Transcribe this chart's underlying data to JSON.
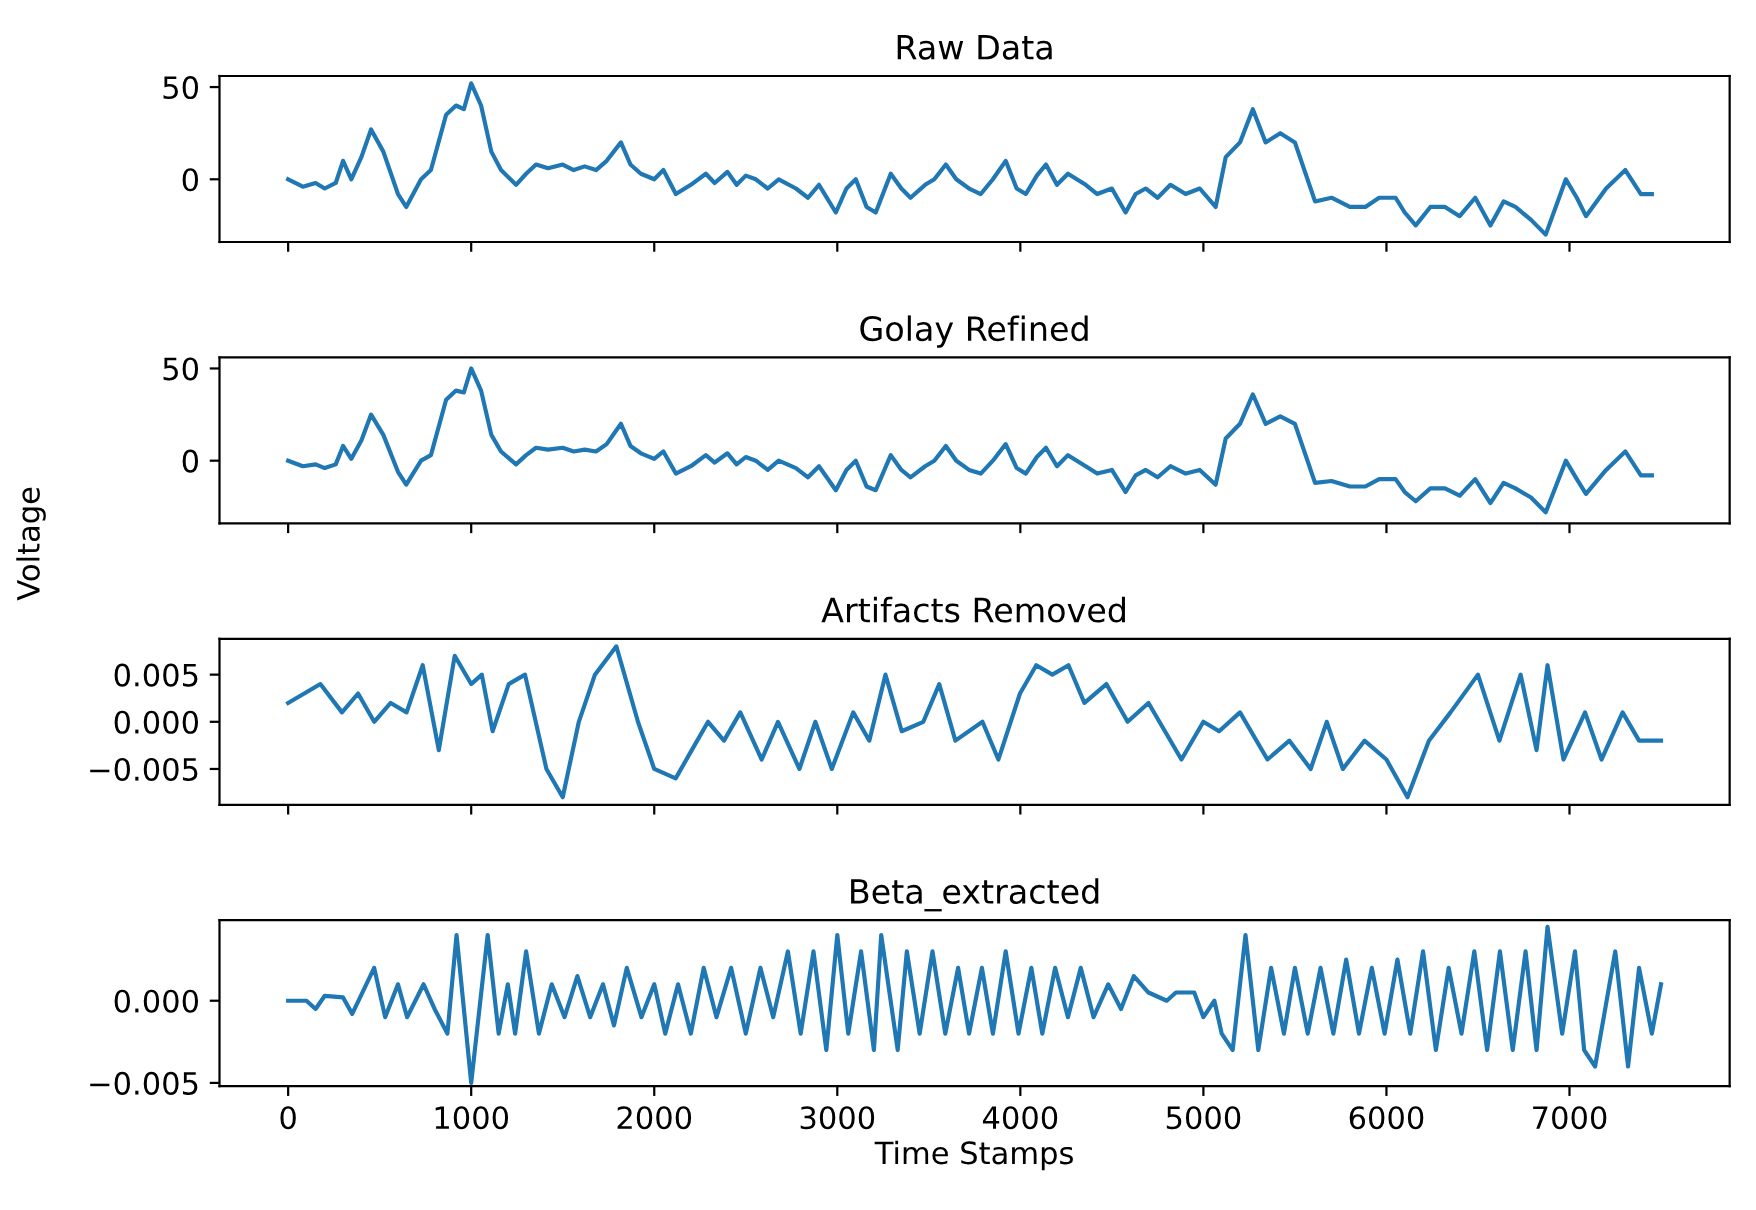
{
  "chart_data": [
    {
      "type": "line",
      "title": "Raw Data",
      "tick_labels": "y",
      "xlim": [
        -375,
        7875
      ],
      "ylim": [
        -34,
        56
      ],
      "xticks": [
        0,
        1000,
        2000,
        3000,
        4000,
        5000,
        6000,
        7000
      ],
      "yticks": [
        0,
        50
      ],
      "grid": false,
      "legend": false,
      "series": [
        {
          "color": "#1f77b4",
          "x": [
            0,
            80,
            150,
            200,
            260,
            300,
            345,
            400,
            453,
            520,
            600,
            645,
            726,
            780,
            863,
            917,
            960,
            1000,
            1054,
            1110,
            1163,
            1245,
            1300,
            1354,
            1420,
            1500,
            1560,
            1620,
            1682,
            1740,
            1818,
            1870,
            1927,
            2000,
            2050,
            2118,
            2200,
            2282,
            2330,
            2400,
            2450,
            2500,
            2555,
            2620,
            2680,
            2774,
            2840,
            2900,
            2992,
            3050,
            3101,
            3160,
            3210,
            3292,
            3350,
            3400,
            3480,
            3530,
            3593,
            3650,
            3720,
            3784,
            3850,
            3920,
            3980,
            4030,
            4090,
            4140,
            4200,
            4260,
            4357,
            4420,
            4500,
            4575,
            4630,
            4685,
            4750,
            4820,
            4903,
            4980,
            5067,
            5122,
            5200,
            5270,
            5340,
            5420,
            5500,
            5610,
            5700,
            5800,
            5885,
            5960,
            6050,
            6100,
            6160,
            6240,
            6320,
            6400,
            6485,
            6568,
            6640,
            6705,
            6790,
            6870,
            6980,
            7040,
            7090,
            7200,
            7305,
            7390,
            7450
          ],
          "values": [
            0,
            -4,
            -2,
            -5,
            -2,
            10,
            0,
            12,
            27,
            15,
            -8,
            -15,
            0,
            5,
            35,
            40,
            38,
            52,
            40,
            15,
            5,
            -3,
            3,
            8,
            6,
            8,
            5,
            7,
            5,
            10,
            20,
            8,
            3,
            0,
            5,
            -8,
            -3,
            3,
            -2,
            4,
            -3,
            2,
            0,
            -5,
            0,
            -5,
            -10,
            -3,
            -18,
            -5,
            0,
            -15,
            -18,
            3,
            -5,
            -10,
            -3,
            0,
            8,
            0,
            -5,
            -8,
            0,
            10,
            -5,
            -8,
            2,
            8,
            -3,
            3,
            -3,
            -8,
            -5,
            -18,
            -8,
            -5,
            -10,
            -3,
            -8,
            -5,
            -15,
            12,
            20,
            38,
            20,
            25,
            20,
            -12,
            -10,
            -15,
            -15,
            -10,
            -10,
            -18,
            -25,
            -15,
            -15,
            -20,
            -10,
            -25,
            -12,
            -15,
            -22,
            -30,
            0,
            -10,
            -20,
            -5,
            5,
            -8,
            -8
          ]
        }
      ]
    },
    {
      "type": "line",
      "title": "Golay Refined",
      "ylabel": "Voltage",
      "tick_labels": "y",
      "xlim": [
        -375,
        7875
      ],
      "ylim": [
        -34,
        56
      ],
      "xticks": [
        0,
        1000,
        2000,
        3000,
        4000,
        5000,
        6000,
        7000
      ],
      "yticks": [
        0,
        50
      ],
      "grid": false,
      "legend": false,
      "series": [
        {
          "color": "#1f77b4",
          "x": [
            0,
            80,
            150,
            200,
            260,
            300,
            345,
            400,
            453,
            520,
            600,
            645,
            726,
            780,
            863,
            917,
            960,
            1000,
            1054,
            1110,
            1163,
            1245,
            1300,
            1354,
            1420,
            1500,
            1560,
            1620,
            1682,
            1740,
            1818,
            1870,
            1927,
            2000,
            2050,
            2118,
            2200,
            2282,
            2330,
            2400,
            2450,
            2500,
            2555,
            2620,
            2680,
            2774,
            2840,
            2900,
            2992,
            3050,
            3101,
            3160,
            3210,
            3292,
            3350,
            3400,
            3480,
            3530,
            3593,
            3650,
            3720,
            3784,
            3850,
            3920,
            3980,
            4030,
            4090,
            4140,
            4200,
            4260,
            4357,
            4420,
            4500,
            4575,
            4630,
            4685,
            4750,
            4820,
            4903,
            4980,
            5067,
            5122,
            5200,
            5270,
            5340,
            5420,
            5500,
            5610,
            5700,
            5800,
            5885,
            5960,
            6050,
            6100,
            6160,
            6240,
            6320,
            6400,
            6485,
            6568,
            6640,
            6705,
            6790,
            6870,
            6980,
            7040,
            7090,
            7200,
            7305,
            7390,
            7450
          ],
          "values": [
            0,
            -3,
            -2,
            -4,
            -2,
            8,
            1,
            11,
            25,
            14,
            -6,
            -13,
            0,
            3,
            33,
            38,
            37,
            50,
            38,
            14,
            5,
            -2,
            3,
            7,
            6,
            7,
            5,
            6,
            5,
            9,
            20,
            8,
            4,
            1,
            5,
            -7,
            -3,
            3,
            -1,
            4,
            -2,
            2,
            0,
            -5,
            0,
            -4,
            -9,
            -3,
            -16,
            -5,
            0,
            -14,
            -16,
            3,
            -5,
            -9,
            -3,
            0,
            8,
            0,
            -5,
            -7,
            0,
            9,
            -4,
            -7,
            2,
            7,
            -3,
            3,
            -3,
            -7,
            -5,
            -17,
            -8,
            -5,
            -9,
            -3,
            -7,
            -5,
            -13,
            12,
            20,
            36,
            20,
            24,
            20,
            -12,
            -11,
            -14,
            -14,
            -10,
            -10,
            -17,
            -22,
            -15,
            -15,
            -19,
            -10,
            -23,
            -12,
            -15,
            -20,
            -28,
            0,
            -10,
            -18,
            -5,
            5,
            -8,
            -8
          ]
        }
      ]
    },
    {
      "type": "line",
      "title": "Artifacts Removed",
      "tick_labels": "y",
      "xlim": [
        -375,
        7875
      ],
      "ylim": [
        -0.0088,
        0.0088
      ],
      "xticks": [
        0,
        1000,
        2000,
        3000,
        4000,
        5000,
        6000,
        7000
      ],
      "yticks": [
        {
          "value": -0.005,
          "label": "−0.005"
        },
        {
          "value": 0.0,
          "label": "0.000"
        },
        {
          "value": 0.005,
          "label": "0.005"
        }
      ],
      "grid": false,
      "legend": false,
      "series": [
        {
          "color": "#1f77b4",
          "x": [
            0,
            88,
            176,
            294,
            382,
            470,
            560,
            647,
            735,
            823,
            910,
            1000,
            1058,
            1117,
            1205,
            1294,
            1411,
            1500,
            1588,
            1676,
            1793,
            1911,
            2000,
            2117,
            2205,
            2294,
            2381,
            2470,
            2587,
            2676,
            2793,
            2880,
            2970,
            3087,
            3175,
            3263,
            3352,
            3470,
            3557,
            3645,
            3793,
            3880,
            3998,
            4087,
            4175,
            4263,
            4350,
            4470,
            4586,
            4700,
            4880,
            5000,
            5086,
            5200,
            5350,
            5470,
            5586,
            5674,
            5762,
            5880,
            6000,
            6115,
            6232,
            6350,
            6500,
            6617,
            6733,
            6820,
            6880,
            6967,
            7085,
            7175,
            7290,
            7380,
            7500
          ],
          "values": [
            0.002,
            0.003,
            0.004,
            0.001,
            0.003,
            0.0,
            0.002,
            0.001,
            0.006,
            -0.003,
            0.007,
            0.004,
            0.005,
            -0.001,
            0.004,
            0.005,
            -0.005,
            -0.008,
            0.0,
            0.005,
            0.008,
            0.0,
            -0.005,
            -0.006,
            -0.003,
            0.0,
            -0.002,
            0.001,
            -0.004,
            0.0,
            -0.005,
            0.0,
            -0.005,
            0.001,
            -0.002,
            0.005,
            -0.001,
            0.0,
            0.004,
            -0.002,
            0.0,
            -0.004,
            0.003,
            0.006,
            0.005,
            0.006,
            0.002,
            0.004,
            0.0,
            0.002,
            -0.004,
            0.0,
            -0.001,
            0.001,
            -0.004,
            -0.002,
            -0.005,
            0.0,
            -0.005,
            -0.002,
            -0.004,
            -0.008,
            -0.002,
            0.001,
            0.005,
            -0.002,
            0.005,
            -0.003,
            0.006,
            -0.004,
            0.001,
            -0.004,
            0.001,
            -0.002,
            -0.002
          ]
        }
      ]
    },
    {
      "type": "line",
      "title": "Beta_extracted",
      "xlabel": "Time Stamps",
      "xlim": [
        -375,
        7875
      ],
      "ylim": [
        -0.0052,
        0.0049
      ],
      "xticks": [
        0,
        1000,
        2000,
        3000,
        4000,
        5000,
        6000,
        7000
      ],
      "yticks": [
        {
          "value": -0.005,
          "label": "−0.005"
        },
        {
          "value": 0.0,
          "label": "0.000"
        }
      ],
      "grid": false,
      "legend": false,
      "series": [
        {
          "color": "#1f77b4",
          "x": [
            0,
            100,
            150,
            200,
            300,
            350,
            470,
            530,
            600,
            650,
            740,
            800,
            870,
            920,
            1000,
            1090,
            1150,
            1200,
            1240,
            1300,
            1370,
            1440,
            1510,
            1580,
            1650,
            1720,
            1780,
            1850,
            1930,
            2000,
            2060,
            2130,
            2200,
            2270,
            2340,
            2420,
            2500,
            2580,
            2650,
            2730,
            2800,
            2870,
            2940,
            3000,
            3060,
            3130,
            3200,
            3240,
            3330,
            3380,
            3450,
            3520,
            3590,
            3660,
            3720,
            3790,
            3850,
            3920,
            3990,
            4060,
            4120,
            4190,
            4260,
            4330,
            4400,
            4480,
            4550,
            4620,
            4700,
            4800,
            4850,
            4950,
            5000,
            5060,
            5100,
            5160,
            5230,
            5300,
            5370,
            5440,
            5500,
            5570,
            5640,
            5710,
            5780,
            5850,
            5920,
            5990,
            6060,
            6130,
            6200,
            6270,
            6340,
            6410,
            6480,
            6550,
            6620,
            6690,
            6760,
            6820,
            6880,
            6960,
            7030,
            7080,
            7140,
            7250,
            7320,
            7380,
            7450,
            7500
          ],
          "values": [
            0.0,
            0.0,
            -0.0005,
            0.0003,
            0.0002,
            -0.0008,
            0.002,
            -0.001,
            0.001,
            -0.001,
            0.001,
            -0.0005,
            -0.002,
            0.004,
            -0.005,
            0.004,
            -0.002,
            0.001,
            -0.002,
            0.003,
            -0.002,
            0.001,
            -0.001,
            0.0015,
            -0.001,
            0.001,
            -0.0015,
            0.002,
            -0.001,
            0.001,
            -0.002,
            0.001,
            -0.002,
            0.002,
            -0.001,
            0.002,
            -0.002,
            0.002,
            -0.001,
            0.003,
            -0.002,
            0.003,
            -0.003,
            0.004,
            -0.002,
            0.003,
            -0.003,
            0.004,
            -0.003,
            0.003,
            -0.002,
            0.003,
            -0.002,
            0.002,
            -0.002,
            0.002,
            -0.002,
            0.003,
            -0.002,
            0.002,
            -0.002,
            0.002,
            -0.001,
            0.002,
            -0.001,
            0.001,
            -0.0005,
            0.0015,
            0.0005,
            0.0,
            0.0005,
            0.0005,
            -0.001,
            0.0,
            -0.002,
            -0.003,
            0.004,
            -0.003,
            0.002,
            -0.002,
            0.002,
            -0.002,
            0.002,
            -0.002,
            0.0025,
            -0.002,
            0.002,
            -0.002,
            0.0025,
            -0.002,
            0.003,
            -0.003,
            0.002,
            -0.002,
            0.003,
            -0.003,
            0.003,
            -0.003,
            0.003,
            -0.003,
            0.0045,
            -0.002,
            0.003,
            -0.003,
            -0.004,
            0.003,
            -0.004,
            0.002,
            -0.002,
            0.001
          ]
        }
      ]
    }
  ]
}
